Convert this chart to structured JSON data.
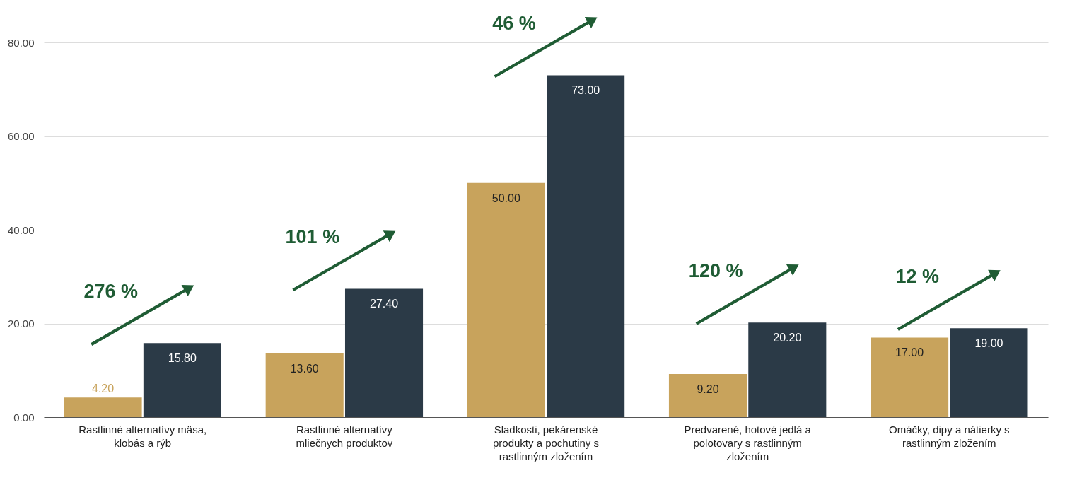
{
  "chart_data": {
    "type": "bar",
    "categories": [
      "Rastlinné alternatívy mäsa, klobás a rýb",
      "Rastlinné alternatívy mliečnych produktov",
      "Sladkosti, pekárenské produkty a pochutiny s rastlinným zložením",
      "Predvarené, hotové jedlá a polotovary s rastlinným zložením",
      "Omáčky, dipy a nátierky s rastlinným zložením"
    ],
    "series": [
      {
        "color": "#c8a35c",
        "values": [
          4.2,
          13.6,
          50,
          9.2,
          17
        ],
        "value_labels": [
          "4.20",
          "13.60",
          "50.00",
          "9.20",
          "17.00"
        ]
      },
      {
        "color": "#2b3a47",
        "values": [
          15.8,
          27.4,
          73,
          20.2,
          19
        ],
        "value_labels": [
          "15.80",
          "27.40",
          "73.00",
          "20.20",
          "19.00"
        ]
      }
    ],
    "ylim": [
      0,
      80
    ],
    "yticks": [
      {
        "value": 0,
        "label": "0.00"
      },
      {
        "value": 20,
        "label": "20.00"
      },
      {
        "value": 40,
        "label": "40.00"
      },
      {
        "value": 60,
        "label": "60.00"
      },
      {
        "value": 80,
        "label": "80.00"
      }
    ],
    "grid": "y",
    "annotations": [
      "276 %",
      "101 %",
      "46 %",
      "120 %",
      "12 %"
    ]
  }
}
